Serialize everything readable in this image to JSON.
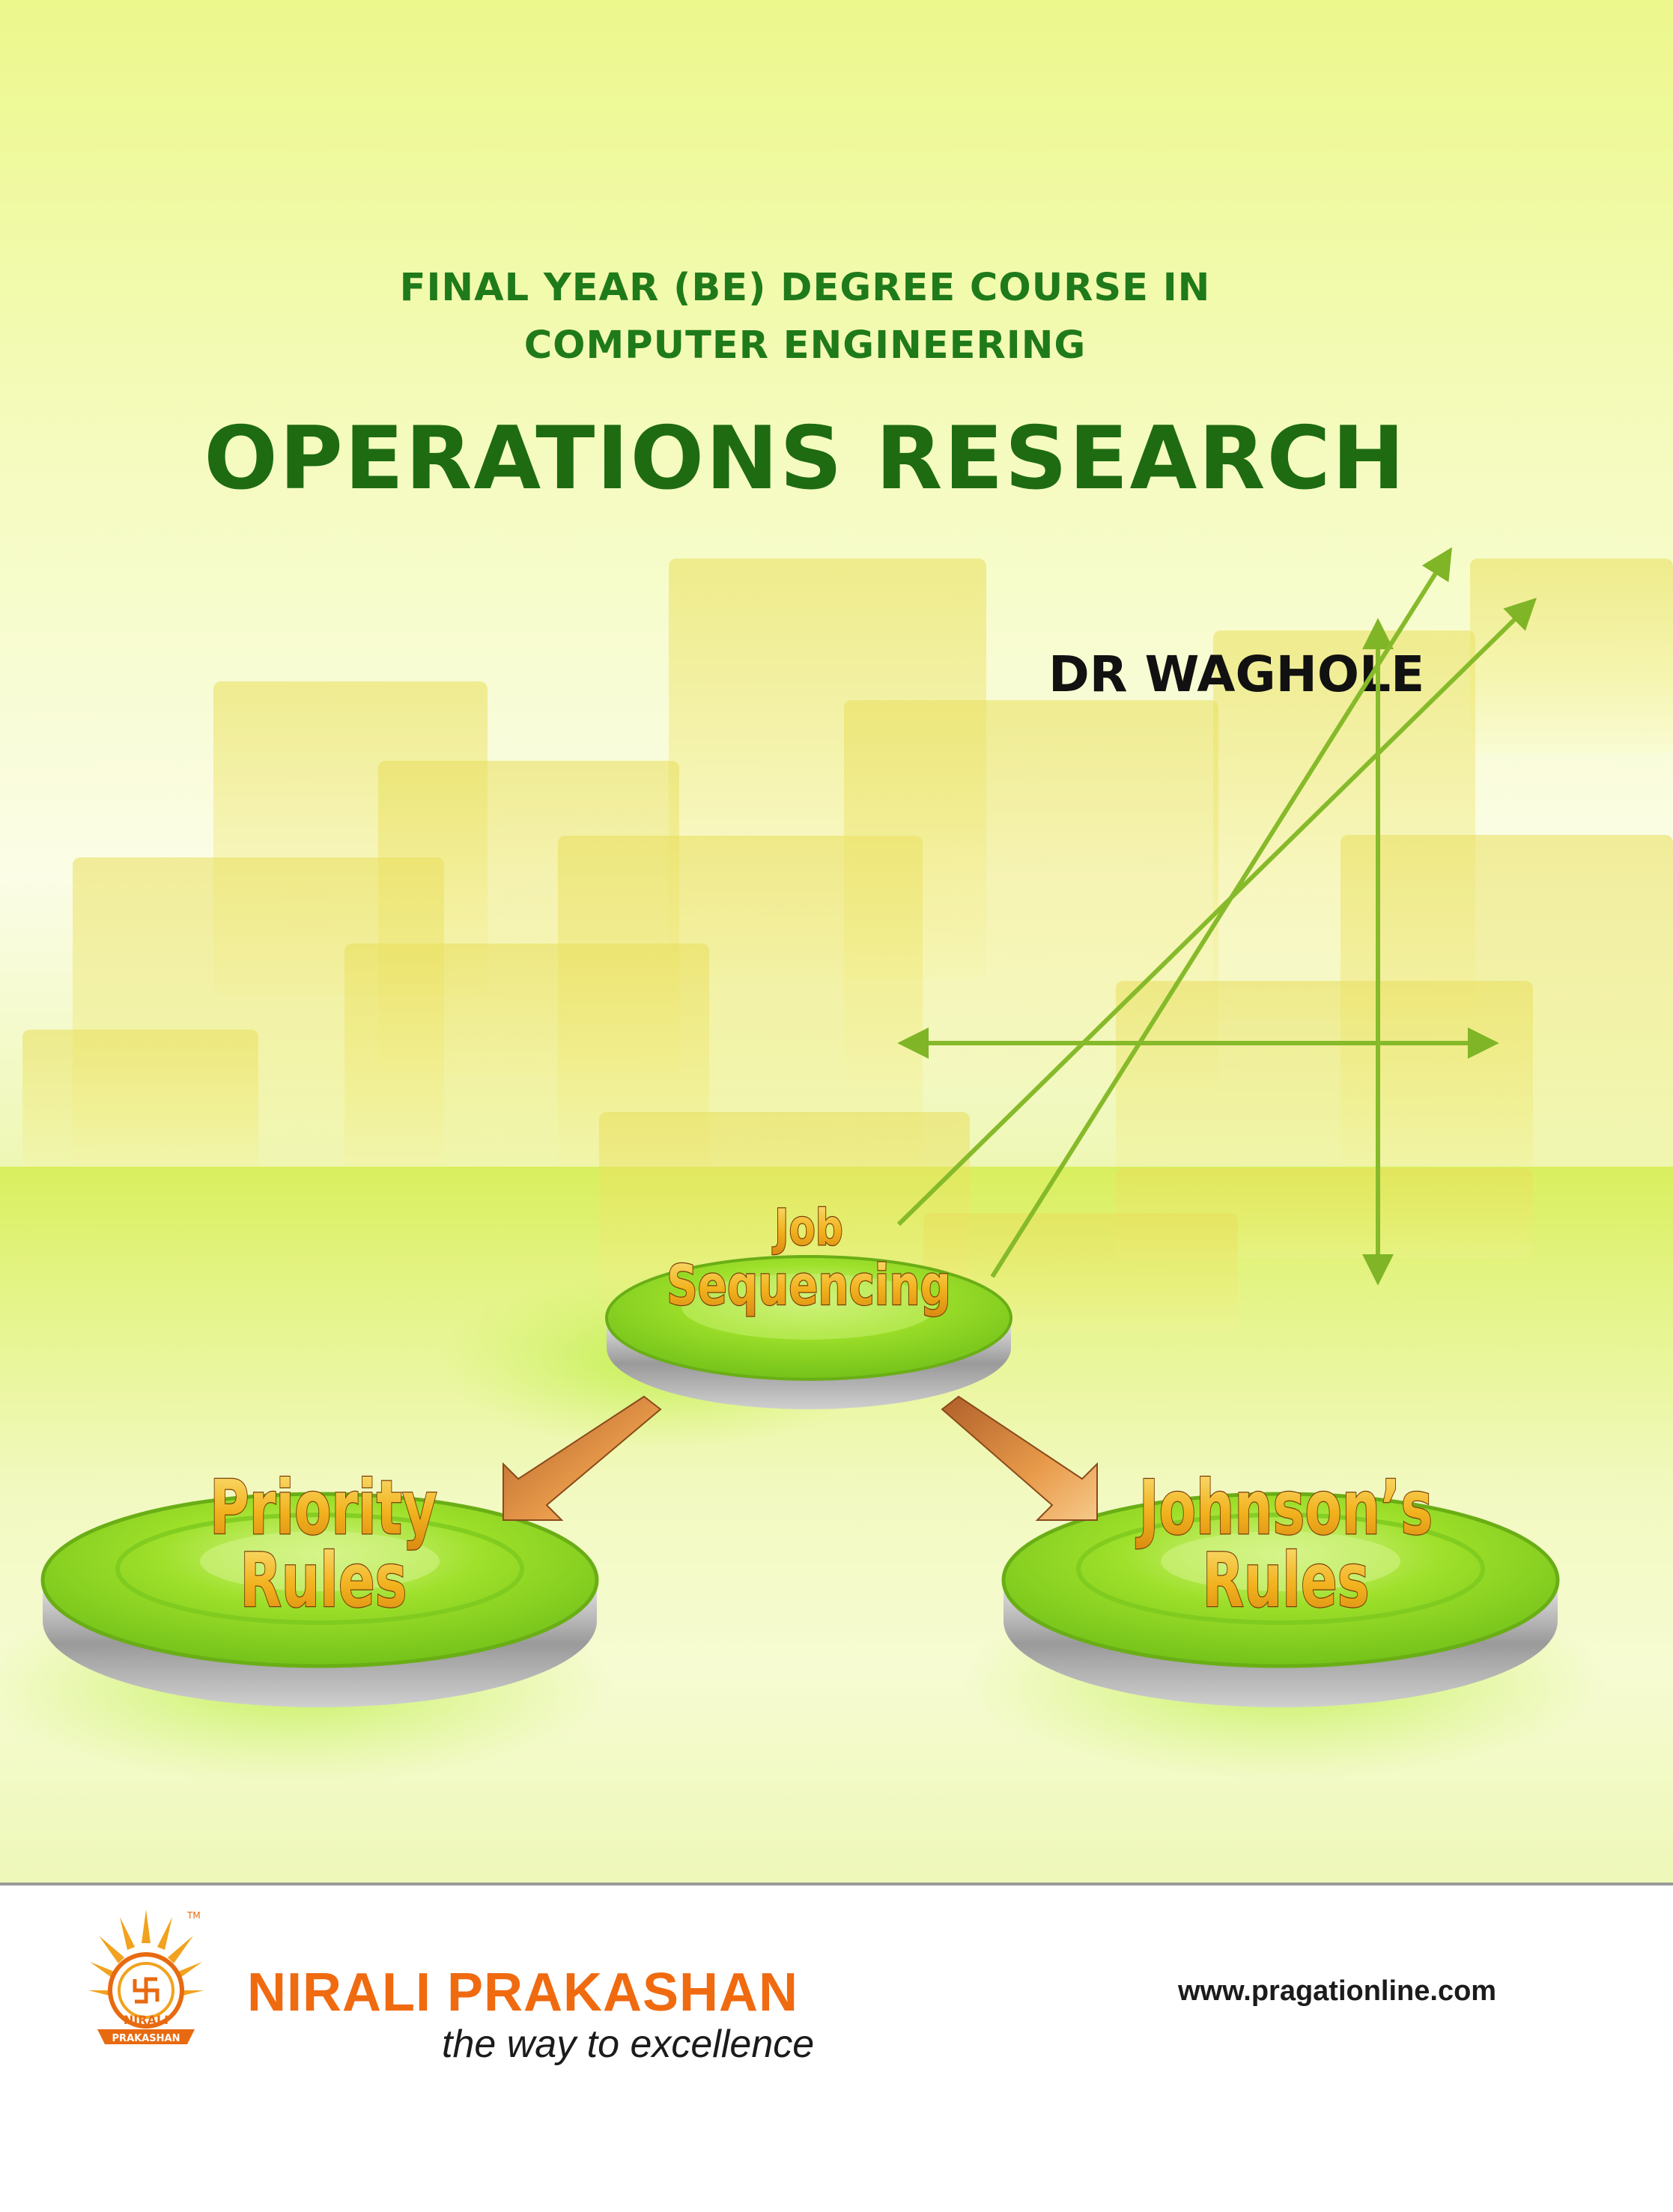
{
  "cover": {
    "course_line_1": "FINAL YEAR (BE) DEGREE COURSE IN",
    "course_line_2": "COMPUTER ENGINEERING",
    "title": "OPERATIONS RESEARCH",
    "author": "DR WAGHOLE"
  },
  "diagram": {
    "top_node": {
      "line_1": "Job",
      "line_2": "Sequencing"
    },
    "left_node": {
      "line_1": "Priority",
      "line_2": "Rules"
    },
    "right_node": {
      "line_1": "Johnson’s",
      "line_2": "Rules"
    }
  },
  "footer": {
    "publisher": "NIRALI PRAKASHAN",
    "tagline": "the way to excellence",
    "website": "www.pragationline.com",
    "logo_text_top": "NIRALI",
    "logo_text_bottom": "PRAKASHAN",
    "logo_tm": "TM"
  },
  "colors": {
    "title_green": "#1e6b12",
    "publisher_orange": "#f06a10",
    "disc_green": "#8ed61a",
    "label_gold": "#f2b21e",
    "arrow_green": "#7fb526"
  }
}
